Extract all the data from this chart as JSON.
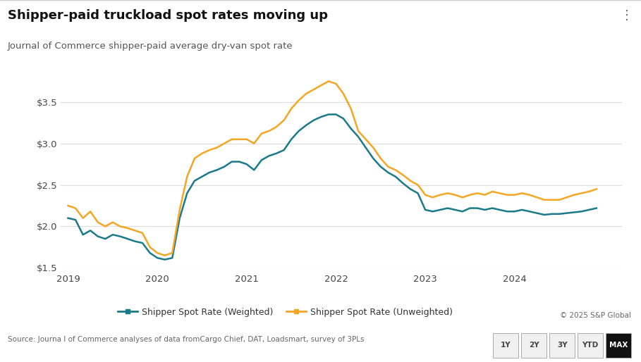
{
  "title": "Shipper-paid truckload spot rates moving up",
  "subtitle": "Journal of Commerce shipper-paid average dry-van spot rate",
  "source": "Source: Journa l of Commerce analyses of data fromCargo Chief, DAT, Loadsmart, survey of 3PLs",
  "copyright": "© 2025 S&P Global",
  "weighted_color": "#1a7a8a",
  "unweighted_color": "#f5a623",
  "background_color": "#ffffff",
  "ylim": [
    1.5,
    3.9
  ],
  "yticks": [
    1.5,
    2.0,
    2.5,
    3.0,
    3.5
  ],
  "legend_weighted": "Shipper Spot Rate (Weighted)",
  "legend_unweighted": "Shipper Spot Rate (Unweighted)",
  "weighted_x": [
    2019.0,
    2019.083,
    2019.167,
    2019.25,
    2019.333,
    2019.417,
    2019.5,
    2019.583,
    2019.667,
    2019.75,
    2019.833,
    2019.917,
    2020.0,
    2020.083,
    2020.167,
    2020.25,
    2020.333,
    2020.417,
    2020.5,
    2020.583,
    2020.667,
    2020.75,
    2020.833,
    2020.917,
    2021.0,
    2021.083,
    2021.167,
    2021.25,
    2021.333,
    2021.417,
    2021.5,
    2021.583,
    2021.667,
    2021.75,
    2021.833,
    2021.917,
    2022.0,
    2022.083,
    2022.167,
    2022.25,
    2022.333,
    2022.417,
    2022.5,
    2022.583,
    2022.667,
    2022.75,
    2022.833,
    2022.917,
    2023.0,
    2023.083,
    2023.167,
    2023.25,
    2023.333,
    2023.417,
    2023.5,
    2023.583,
    2023.667,
    2023.75,
    2023.833,
    2023.917,
    2024.0,
    2024.083,
    2024.167,
    2024.25,
    2024.333,
    2024.417,
    2024.5,
    2024.583,
    2024.667,
    2024.75,
    2024.833,
    2024.917
  ],
  "weighted_y": [
    2.1,
    2.08,
    1.9,
    1.95,
    1.88,
    1.85,
    1.9,
    1.88,
    1.85,
    1.82,
    1.8,
    1.68,
    1.62,
    1.6,
    1.62,
    2.1,
    2.4,
    2.55,
    2.6,
    2.65,
    2.68,
    2.72,
    2.78,
    2.78,
    2.75,
    2.68,
    2.8,
    2.85,
    2.88,
    2.92,
    3.05,
    3.15,
    3.22,
    3.28,
    3.32,
    3.35,
    3.35,
    3.3,
    3.18,
    3.08,
    2.95,
    2.82,
    2.72,
    2.65,
    2.6,
    2.52,
    2.45,
    2.4,
    2.2,
    2.18,
    2.2,
    2.22,
    2.2,
    2.18,
    2.22,
    2.22,
    2.2,
    2.22,
    2.2,
    2.18,
    2.18,
    2.2,
    2.18,
    2.16,
    2.14,
    2.15,
    2.15,
    2.16,
    2.17,
    2.18,
    2.2,
    2.22
  ],
  "unweighted_x": [
    2019.0,
    2019.083,
    2019.167,
    2019.25,
    2019.333,
    2019.417,
    2019.5,
    2019.583,
    2019.667,
    2019.75,
    2019.833,
    2019.917,
    2020.0,
    2020.083,
    2020.167,
    2020.25,
    2020.333,
    2020.417,
    2020.5,
    2020.583,
    2020.667,
    2020.75,
    2020.833,
    2020.917,
    2021.0,
    2021.083,
    2021.167,
    2021.25,
    2021.333,
    2021.417,
    2021.5,
    2021.583,
    2021.667,
    2021.75,
    2021.833,
    2021.917,
    2022.0,
    2022.083,
    2022.167,
    2022.25,
    2022.333,
    2022.417,
    2022.5,
    2022.583,
    2022.667,
    2022.75,
    2022.833,
    2022.917,
    2023.0,
    2023.083,
    2023.167,
    2023.25,
    2023.333,
    2023.417,
    2023.5,
    2023.583,
    2023.667,
    2023.75,
    2023.833,
    2023.917,
    2024.0,
    2024.083,
    2024.167,
    2024.25,
    2024.333,
    2024.417,
    2024.5,
    2024.583,
    2024.667,
    2024.75,
    2024.833,
    2024.917
  ],
  "unweighted_y": [
    2.25,
    2.22,
    2.1,
    2.18,
    2.05,
    2.0,
    2.05,
    2.0,
    1.98,
    1.95,
    1.92,
    1.75,
    1.68,
    1.65,
    1.68,
    2.2,
    2.6,
    2.82,
    2.88,
    2.92,
    2.95,
    3.0,
    3.05,
    3.05,
    3.05,
    3.0,
    3.12,
    3.15,
    3.2,
    3.28,
    3.42,
    3.52,
    3.6,
    3.65,
    3.7,
    3.75,
    3.72,
    3.6,
    3.42,
    3.15,
    3.05,
    2.95,
    2.82,
    2.72,
    2.68,
    2.62,
    2.55,
    2.5,
    2.38,
    2.35,
    2.38,
    2.4,
    2.38,
    2.35,
    2.38,
    2.4,
    2.38,
    2.42,
    2.4,
    2.38,
    2.38,
    2.4,
    2.38,
    2.35,
    2.32,
    2.32,
    2.32,
    2.35,
    2.38,
    2.4,
    2.42,
    2.45
  ],
  "xticks": [
    2019,
    2020,
    2021,
    2022,
    2023,
    2024
  ],
  "xlim": [
    2018.92,
    2025.2
  ],
  "title_fontsize": 13,
  "subtitle_fontsize": 9.5,
  "axis_fontsize": 9.5,
  "legend_fontsize": 9,
  "source_fontsize": 7.5
}
